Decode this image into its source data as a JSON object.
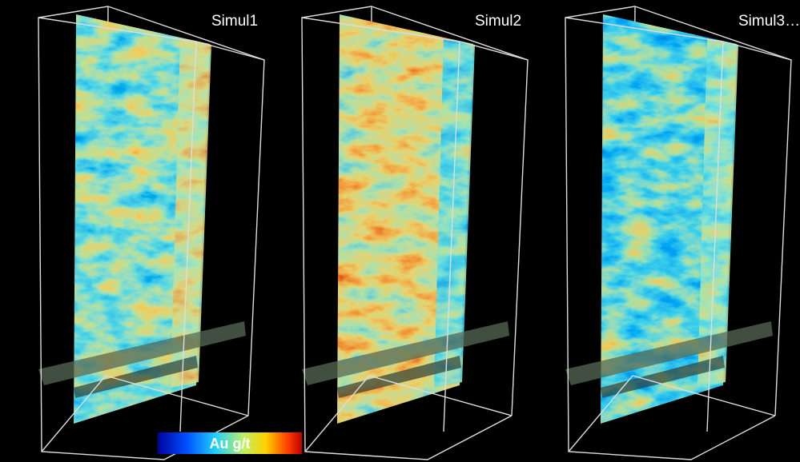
{
  "panels": [
    {
      "label": "Simul1"
    },
    {
      "label": "Simul2"
    },
    {
      "label": "Simul3…"
    }
  ],
  "colorbar": {
    "label": "Au g/t"
  }
}
